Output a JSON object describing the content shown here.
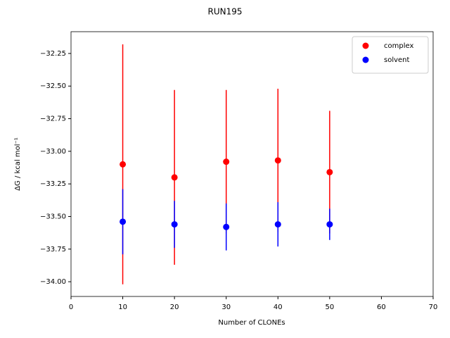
{
  "chart_data": {
    "type": "errorbar-scatter",
    "title": "RUN195",
    "xlabel": "Number of CLONEs",
    "ylabel": "ΔG / kcal mol⁻¹",
    "x": [
      10,
      20,
      30,
      40,
      50
    ],
    "series": [
      {
        "name": "complex",
        "color": "#ff0000",
        "values": [
          -33.1,
          -33.2,
          -33.08,
          -33.07,
          -33.16
        ],
        "errors": [
          0.92,
          0.67,
          0.55,
          0.55,
          0.47
        ]
      },
      {
        "name": "solvent",
        "color": "#0000ff",
        "values": [
          -33.54,
          -33.56,
          -33.58,
          -33.56,
          -33.56
        ],
        "errors": [
          0.25,
          0.18,
          0.18,
          0.17,
          0.12
        ]
      }
    ],
    "xlim": [
      0,
      70
    ],
    "xticks": [
      0,
      10,
      20,
      30,
      40,
      50,
      60,
      70
    ],
    "ylim": [
      -34.113,
      -32.083
    ],
    "yticks": [
      {
        "value": -34.0,
        "label": "−34.00"
      },
      {
        "value": -33.75,
        "label": "−33.75"
      },
      {
        "value": -33.5,
        "label": "−33.50"
      },
      {
        "value": -33.25,
        "label": "−33.25"
      },
      {
        "value": -33.0,
        "label": "−33.00"
      },
      {
        "value": -32.75,
        "label": "−32.75"
      },
      {
        "value": -32.5,
        "label": "−32.50"
      },
      {
        "value": -32.25,
        "label": "−32.25"
      }
    ],
    "legend": "upper right",
    "grid": false
  }
}
